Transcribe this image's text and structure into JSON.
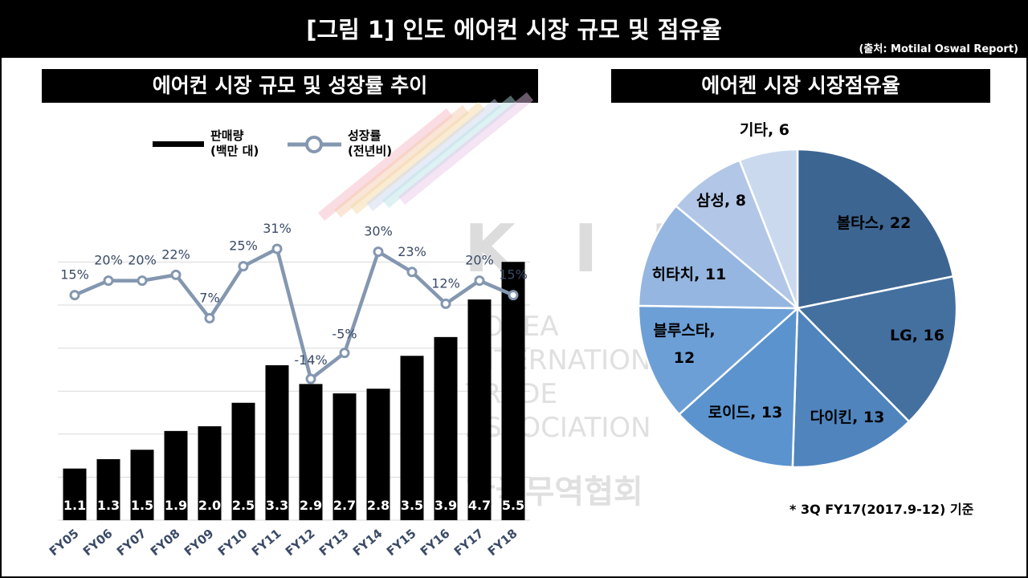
{
  "header": {
    "title": "[그림 1] 인도 에어컨 시장 규모 및 점유율",
    "source": "(출처: Motilal Oswal Report)"
  },
  "left_panel": {
    "title": "에어컨 시장 규모 및 성장률 추이"
  },
  "right_panel": {
    "title": "에어켄 시장 시장점유율"
  },
  "legend": {
    "sales_line1": "판매량",
    "sales_line2": "(백만 대)",
    "growth_line1": "성장률",
    "growth_line2": "(전년비)"
  },
  "footnote": "* 3Q FY17(2017.9-12) 기준",
  "watermark": {
    "letters": "K I T A",
    "lines": [
      "KOREA",
      "INTERNATIONAL",
      "TRADE",
      "ASSOCIATION"
    ],
    "korean": "한국무역협회"
  },
  "colors": {
    "bar": "#000000",
    "growth_line": "#8497b0",
    "pie": [
      "#3d6591",
      "#4470a0",
      "#4f84bd",
      "#5b93cf",
      "#6c9fd6",
      "#95b6e0",
      "#b2c7e7",
      "#cbd9ef"
    ]
  },
  "chart_data": [
    {
      "type": "bar",
      "title": "에어컨 시장 규모 및 성장률 추이",
      "categories": [
        "FY05",
        "FY06",
        "FY07",
        "FY08",
        "FY09",
        "FY10",
        "FY11",
        "FY12",
        "FY13",
        "FY14",
        "FY15",
        "FY16",
        "FY17",
        "FY18"
      ],
      "series": [
        {
          "name": "판매량 (백만 대)",
          "values": [
            1.1,
            1.3,
            1.5,
            1.9,
            2.0,
            2.5,
            3.3,
            2.9,
            2.7,
            2.8,
            3.5,
            3.9,
            4.7,
            5.5
          ],
          "labels": [
            "1.1",
            "1.3",
            "1.5",
            "1.9",
            "2.0",
            "2.5",
            "3.3",
            "2.9",
            "2.7",
            "2.8",
            "3.5",
            "3.9",
            "4.7",
            "5.5"
          ]
        },
        {
          "name": "성장률 (전년비)",
          "type": "line",
          "values": [
            15,
            20,
            20,
            22,
            7,
            25,
            31,
            -14,
            -5,
            30,
            23,
            12,
            20,
            15
          ],
          "labels": [
            "15%",
            "20%",
            "20%",
            "22%",
            "7%",
            "25%",
            "31%",
            "-14%",
            "-5%",
            "30%",
            "23%",
            "12%",
            "20%",
            "15%"
          ]
        }
      ],
      "grid": true
    },
    {
      "type": "pie",
      "title": "에어켄 시장 시장점유율",
      "slices": [
        {
          "name": "볼타스",
          "value": 22,
          "label": "볼타스, 22"
        },
        {
          "name": "LG",
          "value": 16,
          "label": "LG, 16"
        },
        {
          "name": "다이킨",
          "value": 13,
          "label": "다이킨, 13"
        },
        {
          "name": "로이드",
          "value": 13,
          "label": "로이드, 13"
        },
        {
          "name": "블루스타",
          "value": 12,
          "label_lines": [
            "블루스타,",
            "12"
          ]
        },
        {
          "name": "히타치",
          "value": 11,
          "label": "히타치, 11"
        },
        {
          "name": "삼성",
          "value": 8,
          "label": "삼성, 8"
        },
        {
          "name": "기타",
          "value": 6,
          "label": "기타, 6"
        }
      ]
    }
  ]
}
